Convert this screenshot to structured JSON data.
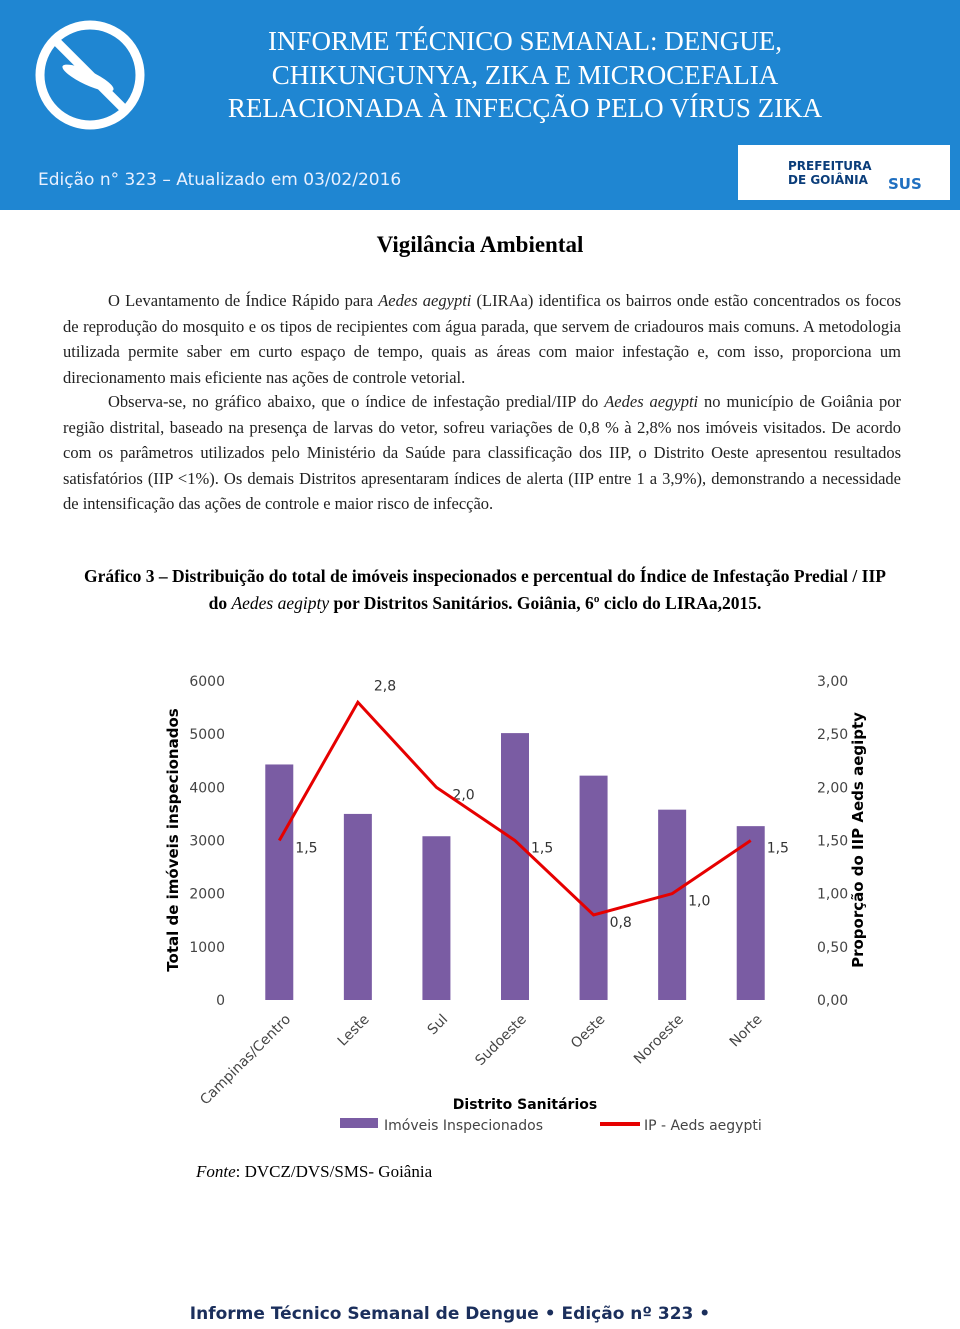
{
  "header": {
    "title_lines": [
      "INFORME TÉCNICO SEMANAL: DENGUE,",
      "CHIKUNGUNYA, ZIKA E MICROCEFALIA",
      "RELACIONADA À INFECÇÃO PELO VÍRUS ZIKA"
    ],
    "edition": "Edição n° 323 – Atualizado em 03/02/2016",
    "logo_city": "PREFEITURA DE GOIÂNIA",
    "logo_sus": "SUS"
  },
  "section": {
    "title": "Vigilância Ambiental",
    "paragraphs": [
      [
        {
          "text": "O Levantamento de Índice Rápido para "
        },
        {
          "text": "Aedes aegypti",
          "italic": true
        },
        {
          "text": " (LIRAa)  identifica os bairros onde estão concentrados os focos de reprodução do mosquito e  os tipos de recipientes com água parada, que servem de criadouros mais comuns. A metodologia utilizada permite saber em curto espaço de tempo, quais as áreas com maior infestação e, com isso, proporciona um direcionamento mais eficiente nas ações de controle vetorial."
        }
      ],
      [
        {
          "text": "Observa-se, no gráfico abaixo, que o índice de infestação predial/IIP do "
        },
        {
          "text": "Aedes aegypti",
          "italic": true
        },
        {
          "text": " no município de Goiânia por região distrital, baseado na presença de larvas do vetor, sofreu variações de 0,8 % à 2,8% nos imóveis visitados. De acordo com os parâmetros utilizados pelo Ministério da Saúde para classificação dos IIP, o Distrito Oeste apresentou resultados satisfatórios (IIP <1%). Os demais Distritos apresentaram índices de alerta (IIP entre 1 a 3,9%), demonstrando a necessidade de intensificação das ações de controle e maior risco de infecção."
        }
      ]
    ]
  },
  "caption": [
    {
      "text": "Gráfico 3 – Distribuição do total de imóveis inspecionados e percentual do Índice de Infestação Predial / IIP do ",
      "bold": true
    },
    {
      "text": "Aedes aegipty",
      "italic": true
    },
    {
      "text": " por Distritos Sanitários. Goiânia, 6º ciclo do LIRAa,2015.",
      "bold": true
    }
  ],
  "chart_data": {
    "type": "combo",
    "x_label": "Distrito Sanitários",
    "y_label": "Total de imóveis inspecionados",
    "y2_label": "Proporção do IIP Aeds aegipty",
    "categories": [
      "Campinas/Centro",
      "Leste",
      "Sul",
      "Sudoeste",
      "Oeste",
      "Noroeste",
      "Norte"
    ],
    "series": [
      {
        "name": "Imóveis Inspecionados",
        "type": "bar",
        "color": "#7a5ca3",
        "values": [
          4430,
          3500,
          3080,
          5020,
          4220,
          3580,
          3270
        ]
      },
      {
        "name": "IP - Aeds aegypti",
        "type": "line",
        "axis": "y2",
        "color": "#e60000",
        "values": [
          1.5,
          2.8,
          2.0,
          1.5,
          0.8,
          1.0,
          1.5
        ],
        "value_labels": [
          "1,5",
          "2,8",
          "2,0",
          "1,5",
          "0,8",
          "1,0",
          "1,5"
        ]
      }
    ],
    "ylim": [
      0,
      6000
    ],
    "yticks": [
      0,
      1000,
      2000,
      3000,
      4000,
      5000,
      6000
    ],
    "y2lim": [
      0,
      3
    ],
    "y2ticks": [
      {
        "value": 0,
        "label": "0,00"
      },
      {
        "value": 0.5,
        "label": "0,50"
      },
      {
        "value": 1,
        "label": "1,00"
      },
      {
        "value": 1.5,
        "label": "1,50"
      },
      {
        "value": 2,
        "label": "2,00"
      },
      {
        "value": 2.5,
        "label": "2,50"
      },
      {
        "value": 3,
        "label": "3,00"
      }
    ]
  },
  "source": [
    {
      "text": "Fonte",
      "italic": true
    },
    {
      "text": ": DVCZ/DVS/SMS- Goiânia"
    }
  ],
  "footer": "Informe Técnico Semanal de Dengue • Edição nº 323 •"
}
